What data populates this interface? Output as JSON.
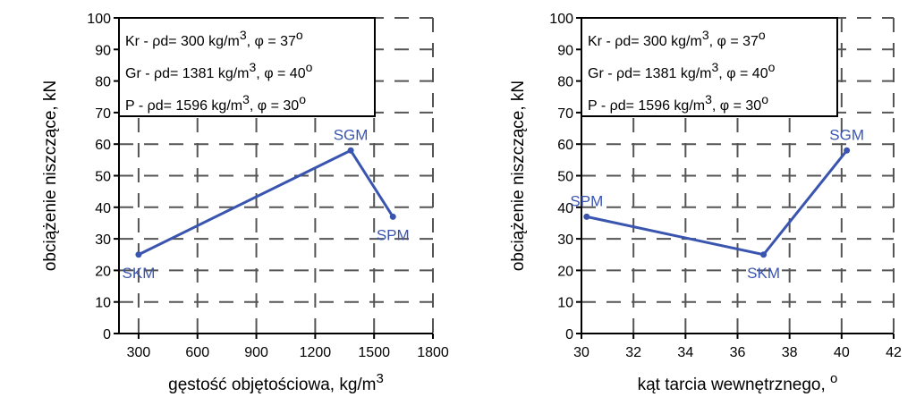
{
  "chart_data": [
    {
      "type": "line",
      "xlabel": "gęstość objętościowa, kg/m",
      "xlabel_sup": "3",
      "ylabel": "obciążenie niszczące, kN",
      "xlim": [
        200,
        1800
      ],
      "ylim": [
        0,
        100
      ],
      "x_ticks": [
        300,
        600,
        900,
        1200,
        1500,
        1800
      ],
      "y_ticks": [
        0,
        10,
        20,
        30,
        40,
        50,
        60,
        70,
        80,
        90,
        100
      ],
      "grid": true,
      "legend_lines": [
        {
          "text": "Kr - ρd= 300 kg/m",
          "sup": "3",
          "tail": ", φ = 37",
          "deg": "o"
        },
        {
          "text": "Gr - ρd= 1381 kg/m",
          "sup": "3",
          "tail": ", φ = 40",
          "deg": "o"
        },
        {
          "text": "P - ρd= 1596 kg/m",
          "sup": "3",
          "tail": ", φ = 30",
          "deg": "o"
        }
      ],
      "legend_position": "top-left",
      "series": [
        {
          "points": [
            {
              "x": 300,
              "y": 25,
              "label": "SKM",
              "label_pos": "below"
            },
            {
              "x": 1381,
              "y": 58,
              "label": "SGM",
              "label_pos": "above"
            },
            {
              "x": 1596,
              "y": 37,
              "label": "SPM",
              "label_pos": "below"
            }
          ]
        }
      ]
    },
    {
      "type": "line",
      "xlabel": "kąt tarcia wewnętrznego, ",
      "xlabel_sup": "o",
      "ylabel": "obciążenie niszczące, kN",
      "xlim": [
        30,
        42
      ],
      "ylim": [
        0,
        100
      ],
      "x_ticks": [
        30,
        32,
        34,
        36,
        38,
        40,
        42
      ],
      "y_ticks": [
        0,
        10,
        20,
        30,
        40,
        50,
        60,
        70,
        80,
        90,
        100
      ],
      "grid": true,
      "legend_lines": [
        {
          "text": "Kr - ρd= 300 kg/m",
          "sup": "3",
          "tail": ", φ = 37",
          "deg": "o"
        },
        {
          "text": "Gr - ρd= 1381 kg/m",
          "sup": "3",
          "tail": ", φ = 40",
          "deg": "o"
        },
        {
          "text": "P - ρd= 1596 kg/m",
          "sup": "3",
          "tail": ", φ = 30",
          "deg": "o"
        }
      ],
      "legend_position": "top-left",
      "series": [
        {
          "points": [
            {
              "x": 30.2,
              "y": 37,
              "label": "SPM",
              "label_pos": "above"
            },
            {
              "x": 37,
              "y": 25,
              "label": "SKM",
              "label_pos": "below"
            },
            {
              "x": 40.2,
              "y": 58,
              "label": "SGM",
              "label_pos": "above"
            }
          ]
        }
      ]
    }
  ],
  "colors": {
    "series": "#3a55b0",
    "axis": "#000000",
    "grid": "#555555"
  }
}
